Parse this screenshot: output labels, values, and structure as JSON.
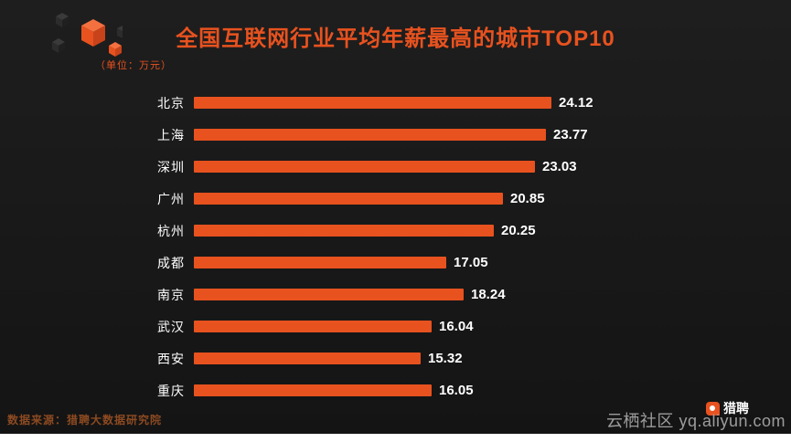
{
  "title": "全国互联网行业平均年薪最高的城市TOP10",
  "unit_label": "（单位：万元）",
  "chart_data": {
    "type": "bar",
    "orientation": "horizontal",
    "title": "全国互联网行业平均年薪最高的城市TOP10",
    "unit": "万元",
    "categories": [
      "北京",
      "上海",
      "深圳",
      "广州",
      "杭州",
      "成都",
      "南京",
      "武汉",
      "西安",
      "重庆"
    ],
    "values": [
      24.12,
      23.77,
      23.03,
      20.85,
      20.25,
      17.05,
      18.24,
      16.04,
      15.32,
      16.05
    ],
    "xlim": [
      0,
      25
    ],
    "grid": false,
    "legend": "none",
    "bar_color": "#e8521f",
    "label_color": "#ffffff"
  },
  "footer": {
    "source": "数据来源：猎聘大数据研究院",
    "logo_text": "猎聘",
    "watermark": "云栖社区 yq.aliyun.com"
  },
  "colors": {
    "background": "#1a1a1a",
    "accent_orange": "#e8521f",
    "text_white": "#ffffff",
    "source_text": "#8d4a21",
    "watermark_text": "#9c9c9c"
  }
}
